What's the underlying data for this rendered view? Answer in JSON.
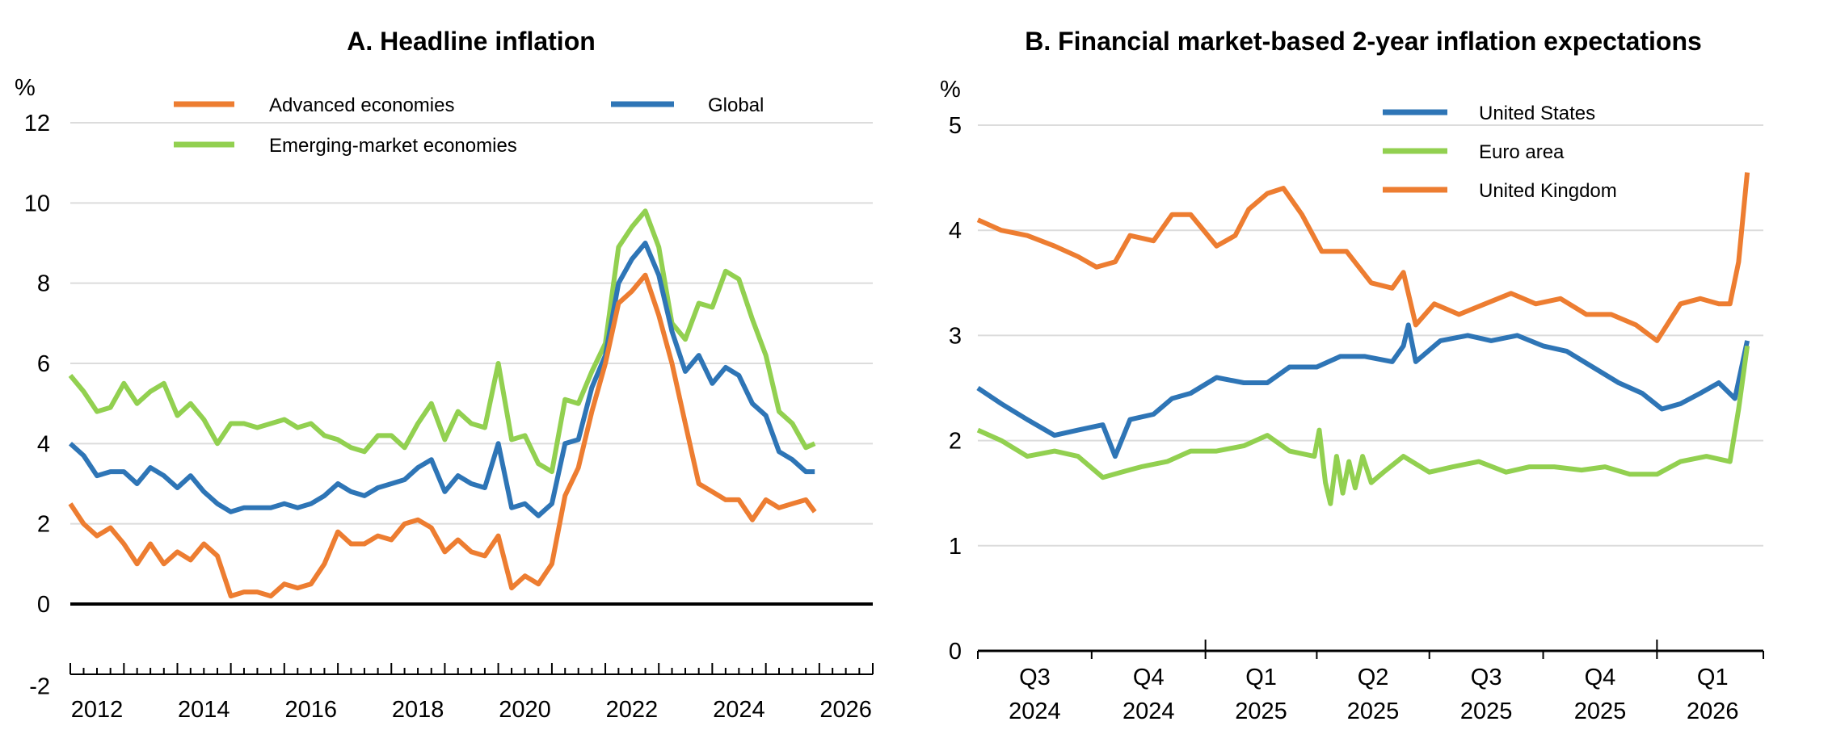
{
  "chart_data": [
    {
      "type": "line",
      "title": "A. Headline inflation",
      "ylabel": "%",
      "xlabel": "",
      "ylim": [
        -2,
        12
      ],
      "yticks": [
        "-2",
        "0",
        "2",
        "4",
        "6",
        "8",
        "10",
        "12"
      ],
      "xlim": [
        "2012-01",
        "2027-01"
      ],
      "xticks": [
        "2012",
        "2014",
        "2016",
        "2018",
        "2020",
        "2022",
        "2024",
        "2026"
      ],
      "grid": true,
      "legend": "top",
      "series": [
        {
          "name": "Advanced economies",
          "color": "#ED7D31",
          "x": [
            "2012-01",
            "2012-04",
            "2012-07",
            "2012-10",
            "2013-01",
            "2013-04",
            "2013-07",
            "2013-10",
            "2014-01",
            "2014-04",
            "2014-07",
            "2014-10",
            "2015-01",
            "2015-04",
            "2015-07",
            "2015-10",
            "2016-01",
            "2016-04",
            "2016-07",
            "2016-10",
            "2017-01",
            "2017-04",
            "2017-07",
            "2017-10",
            "2018-01",
            "2018-04",
            "2018-07",
            "2018-10",
            "2019-01",
            "2019-04",
            "2019-07",
            "2019-10",
            "2020-01",
            "2020-04",
            "2020-07",
            "2020-10",
            "2021-01",
            "2021-04",
            "2021-07",
            "2021-10",
            "2022-01",
            "2022-04",
            "2022-07",
            "2022-10",
            "2023-01",
            "2023-04",
            "2023-07",
            "2023-10",
            "2024-01",
            "2024-04",
            "2024-07",
            "2024-10",
            "2025-01",
            "2025-04",
            "2025-07",
            "2025-10",
            "2025-12"
          ],
          "y": [
            2.5,
            2.0,
            1.7,
            1.9,
            1.5,
            1.0,
            1.5,
            1.0,
            1.3,
            1.1,
            1.5,
            1.2,
            0.2,
            0.3,
            0.3,
            0.2,
            0.5,
            0.4,
            0.5,
            1.0,
            1.8,
            1.5,
            1.5,
            1.7,
            1.6,
            2.0,
            2.1,
            1.9,
            1.3,
            1.6,
            1.3,
            1.2,
            1.7,
            0.4,
            0.7,
            0.5,
            1.0,
            2.7,
            3.4,
            4.8,
            6.0,
            7.5,
            7.8,
            8.2,
            7.2,
            6.0,
            4.5,
            3.0,
            2.8,
            2.6,
            2.6,
            2.1,
            2.6,
            2.4,
            2.5,
            2.6,
            2.3
          ]
        },
        {
          "name": "Global",
          "color": "#2E75B6",
          "x": [
            "2012-01",
            "2012-04",
            "2012-07",
            "2012-10",
            "2013-01",
            "2013-04",
            "2013-07",
            "2013-10",
            "2014-01",
            "2014-04",
            "2014-07",
            "2014-10",
            "2015-01",
            "2015-04",
            "2015-07",
            "2015-10",
            "2016-01",
            "2016-04",
            "2016-07",
            "2016-10",
            "2017-01",
            "2017-04",
            "2017-07",
            "2017-10",
            "2018-01",
            "2018-04",
            "2018-07",
            "2018-10",
            "2019-01",
            "2019-04",
            "2019-07",
            "2019-10",
            "2020-01",
            "2020-04",
            "2020-07",
            "2020-10",
            "2021-01",
            "2021-04",
            "2021-07",
            "2021-10",
            "2022-01",
            "2022-04",
            "2022-07",
            "2022-10",
            "2023-01",
            "2023-04",
            "2023-07",
            "2023-10",
            "2024-01",
            "2024-04",
            "2024-07",
            "2024-10",
            "2025-01",
            "2025-04",
            "2025-07",
            "2025-10",
            "2025-12"
          ],
          "y": [
            4.0,
            3.7,
            3.2,
            3.3,
            3.3,
            3.0,
            3.4,
            3.2,
            2.9,
            3.2,
            2.8,
            2.5,
            2.3,
            2.4,
            2.4,
            2.4,
            2.5,
            2.4,
            2.5,
            2.7,
            3.0,
            2.8,
            2.7,
            2.9,
            3.0,
            3.1,
            3.4,
            3.6,
            2.8,
            3.2,
            3.0,
            2.9,
            4.0,
            2.4,
            2.5,
            2.2,
            2.5,
            4.0,
            4.1,
            5.4,
            6.2,
            8.0,
            8.6,
            9.0,
            8.2,
            6.8,
            5.8,
            6.2,
            5.5,
            5.9,
            5.7,
            5.0,
            4.7,
            3.8,
            3.6,
            3.3,
            3.3
          ]
        },
        {
          "name": "Emerging-market economies",
          "color": "#92D050",
          "x": [
            "2012-01",
            "2012-04",
            "2012-07",
            "2012-10",
            "2013-01",
            "2013-04",
            "2013-07",
            "2013-10",
            "2014-01",
            "2014-04",
            "2014-07",
            "2014-10",
            "2015-01",
            "2015-04",
            "2015-07",
            "2015-10",
            "2016-01",
            "2016-04",
            "2016-07",
            "2016-10",
            "2017-01",
            "2017-04",
            "2017-07",
            "2017-10",
            "2018-01",
            "2018-04",
            "2018-07",
            "2018-10",
            "2019-01",
            "2019-04",
            "2019-07",
            "2019-10",
            "2020-01",
            "2020-04",
            "2020-07",
            "2020-10",
            "2021-01",
            "2021-04",
            "2021-07",
            "2021-10",
            "2022-01",
            "2022-04",
            "2022-07",
            "2022-10",
            "2023-01",
            "2023-04",
            "2023-07",
            "2023-10",
            "2024-01",
            "2024-04",
            "2024-07",
            "2024-10",
            "2025-01",
            "2025-04",
            "2025-07",
            "2025-10",
            "2025-12"
          ],
          "y": [
            5.7,
            5.3,
            4.8,
            4.9,
            5.5,
            5.0,
            5.3,
            5.5,
            4.7,
            5.0,
            4.6,
            4.0,
            4.5,
            4.5,
            4.4,
            4.5,
            4.6,
            4.4,
            4.5,
            4.2,
            4.1,
            3.9,
            3.8,
            4.2,
            4.2,
            3.9,
            4.5,
            5.0,
            4.1,
            4.8,
            4.5,
            4.4,
            6.0,
            4.1,
            4.2,
            3.5,
            3.3,
            5.1,
            5.0,
            5.8,
            6.5,
            8.9,
            9.4,
            9.8,
            8.9,
            7.0,
            6.6,
            7.5,
            7.4,
            8.3,
            8.1,
            7.1,
            6.2,
            4.8,
            4.5,
            3.9,
            4.0
          ]
        }
      ]
    },
    {
      "type": "line",
      "title": "B. Financial market-based 2-year inflation expectations",
      "ylabel": "%",
      "xlabel": "",
      "ylim": [
        0,
        5
      ],
      "yticks": [
        "0",
        "1",
        "2",
        "3",
        "4",
        "5"
      ],
      "xlim": [
        "2024-07-01",
        "2026-03-28"
      ],
      "xticks": [
        {
          "q": "Q3",
          "year": "2024"
        },
        {
          "q": "Q4",
          "year": "2024"
        },
        {
          "q": "Q1",
          "year": "2025"
        },
        {
          "q": "Q2",
          "year": "2025"
        },
        {
          "q": "Q3",
          "year": "2025"
        },
        {
          "q": "Q4",
          "year": "2025"
        },
        {
          "q": "Q1",
          "year": "2026"
        }
      ],
      "grid": true,
      "legend": "top-right",
      "series": [
        {
          "name": "United States",
          "color": "#2E75B6",
          "x": [
            "2024-07-01",
            "2024-07-20",
            "2024-08-10",
            "2024-09-01",
            "2024-09-20",
            "2024-10-10",
            "2024-10-20",
            "2024-11-01",
            "2024-11-20",
            "2024-12-05",
            "2024-12-20",
            "2025-01-10",
            "2025-02-01",
            "2025-02-20",
            "2025-03-10",
            "2025-04-01",
            "2025-04-20",
            "2025-05-10",
            "2025-06-01",
            "2025-06-10",
            "2025-06-14",
            "2025-06-20",
            "2025-07-10",
            "2025-08-01",
            "2025-08-20",
            "2025-09-10",
            "2025-10-01",
            "2025-10-20",
            "2025-11-10",
            "2025-12-01",
            "2025-12-20",
            "2026-01-05",
            "2026-01-20",
            "2026-02-05",
            "2026-02-20",
            "2026-03-05",
            "2026-03-15"
          ],
          "y": [
            2.5,
            2.35,
            2.2,
            2.05,
            2.1,
            2.15,
            1.85,
            2.2,
            2.25,
            2.4,
            2.45,
            2.6,
            2.55,
            2.55,
            2.7,
            2.7,
            2.8,
            2.8,
            2.75,
            2.9,
            3.1,
            2.75,
            2.95,
            3.0,
            2.95,
            3.0,
            2.9,
            2.85,
            2.7,
            2.55,
            2.45,
            2.3,
            2.35,
            2.45,
            2.55,
            2.4,
            2.95
          ]
        },
        {
          "name": "Euro area",
          "color": "#92D050",
          "x": [
            "2024-07-01",
            "2024-07-20",
            "2024-08-10",
            "2024-09-01",
            "2024-09-20",
            "2024-10-10",
            "2024-10-25",
            "2024-11-10",
            "2024-12-01",
            "2024-12-20",
            "2025-01-10",
            "2025-02-01",
            "2025-02-20",
            "2025-03-10",
            "2025-03-30",
            "2025-04-03",
            "2025-04-08",
            "2025-04-12",
            "2025-04-17",
            "2025-04-22",
            "2025-04-27",
            "2025-05-02",
            "2025-05-08",
            "2025-05-15",
            "2025-05-25",
            "2025-06-10",
            "2025-07-01",
            "2025-07-20",
            "2025-08-10",
            "2025-09-01",
            "2025-09-20",
            "2025-10-10",
            "2025-11-01",
            "2025-11-20",
            "2025-12-10",
            "2026-01-01",
            "2026-01-20",
            "2026-02-10",
            "2026-03-01",
            "2026-03-08",
            "2026-03-15"
          ],
          "y": [
            2.1,
            2.0,
            1.85,
            1.9,
            1.85,
            1.65,
            1.7,
            1.75,
            1.8,
            1.9,
            1.9,
            1.95,
            2.05,
            1.9,
            1.85,
            2.1,
            1.6,
            1.4,
            1.85,
            1.5,
            1.8,
            1.55,
            1.85,
            1.6,
            1.7,
            1.85,
            1.7,
            1.75,
            1.8,
            1.7,
            1.75,
            1.75,
            1.72,
            1.75,
            1.68,
            1.68,
            1.8,
            1.85,
            1.8,
            2.3,
            2.9
          ]
        },
        {
          "name": "United Kingdom",
          "color": "#ED7D31",
          "x": [
            "2024-07-01",
            "2024-07-20",
            "2024-08-10",
            "2024-09-01",
            "2024-09-20",
            "2024-10-05",
            "2024-10-20",
            "2024-11-01",
            "2024-11-20",
            "2024-12-05",
            "2024-12-20",
            "2025-01-10",
            "2025-01-25",
            "2025-02-05",
            "2025-02-20",
            "2025-03-05",
            "2025-03-20",
            "2025-04-05",
            "2025-04-25",
            "2025-05-15",
            "2025-06-01",
            "2025-06-10",
            "2025-06-20",
            "2025-07-05",
            "2025-07-25",
            "2025-08-15",
            "2025-09-05",
            "2025-09-25",
            "2025-10-15",
            "2025-11-05",
            "2025-11-25",
            "2025-12-15",
            "2026-01-01",
            "2026-01-20",
            "2026-02-05",
            "2026-02-20",
            "2026-03-01",
            "2026-03-08",
            "2026-03-15"
          ],
          "y": [
            4.1,
            4.0,
            3.95,
            3.85,
            3.75,
            3.65,
            3.7,
            3.95,
            3.9,
            4.15,
            4.15,
            3.85,
            3.95,
            4.2,
            4.35,
            4.4,
            4.15,
            3.8,
            3.8,
            3.5,
            3.45,
            3.6,
            3.1,
            3.3,
            3.2,
            3.3,
            3.4,
            3.3,
            3.35,
            3.2,
            3.2,
            3.1,
            2.95,
            3.3,
            3.35,
            3.3,
            3.3,
            3.7,
            4.55
          ]
        }
      ]
    }
  ]
}
